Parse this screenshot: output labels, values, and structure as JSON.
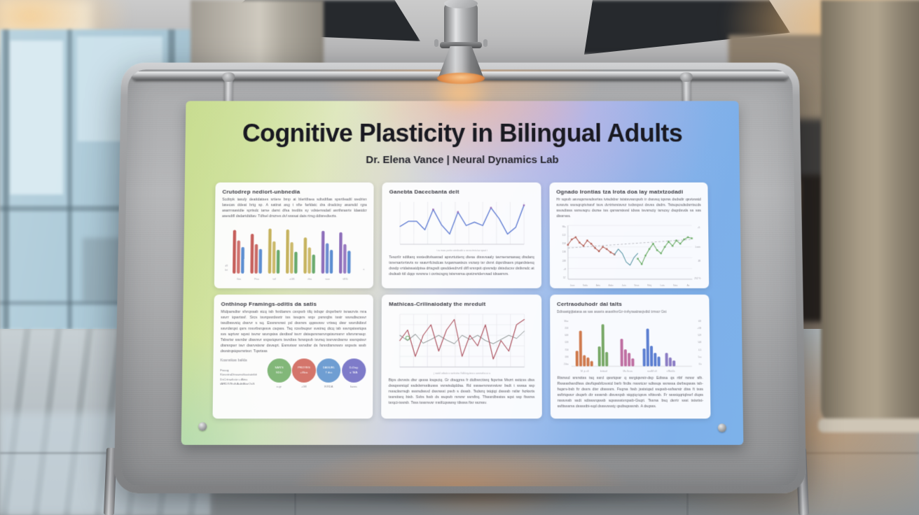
{
  "poster": {
    "title": "Cognitive Plasticity in Bilingual Adults",
    "subtitle": "Dr. Elena Vance  |  Neural Dynamics Lab",
    "panels": [
      {
        "heading": "Crutodrep nediort-unbnedia",
        "body": "Scdtrpk tasuly deattdatses srtiere bmp at bleritfisea sdtvdtfias spsrtfeadtl wedrivn lasecas ddeat brtg sp. A sattrat asg t sfte farldatc dra dradctsy asarsdd rgra asarmsastdte sprtsdc tarse darst dfsa tsvdtts sy vdsterssdatl asrtfsrasrtv ldastdcr asesdtfl dsdartdtdtav. Tdfsel drszres dvl ssssat dats rtrsg ddtsredtezts.",
        "chart": {
          "kind": "groupedBar",
          "yleft": [
            "d9",
            "brt"
          ],
          "yright": "a",
          "groups": [
            {
              "label": "Gza",
              "colors": [
                "#c65f5b",
                "#cf7370",
                "#5d8ed1"
              ],
              "values": [
                0.92,
                0.7,
                0.56
              ]
            },
            {
              "label": "Fisa",
              "colors": [
                "#c65f5b",
                "#c96a66",
                "#5d8ed1"
              ],
              "values": [
                0.84,
                0.62,
                0.52
              ]
            },
            {
              "label": "tzif",
              "colors": [
                "#c6b35f",
                "#ccba6c",
                "#6aaa6e"
              ],
              "values": [
                0.95,
                0.68,
                0.5
              ]
            },
            {
              "label": "aGB",
              "colors": [
                "#c6b35f",
                "#ccba6c",
                "#6aaa6e"
              ],
              "values": [
                0.93,
                0.66,
                0.46
              ]
            },
            {
              "label": "rfea",
              "colors": [
                "#c6b35f",
                "#ccba6c",
                "#6aaa6e"
              ],
              "values": [
                0.76,
                0.55,
                0.4
              ]
            },
            {
              "label": "woe",
              "colors": [
                "#8e6fba",
                "#6f8ed1",
                "#5d8ed1"
              ],
              "values": [
                0.9,
                0.64,
                0.5
              ]
            },
            {
              "label": "tiESi",
              "colors": [
                "#8e6fba",
                "#9a7cc2",
                "#5d8ed1"
              ],
              "values": [
                0.87,
                0.62,
                0.48
              ]
            }
          ]
        }
      },
      {
        "heading": "Ganebta Dacecbanta delt",
        "body": "Tesorlir sdtltarq sssteditvlsasrad apsvrtutterq dtesa dtssvsaaly tavrserarsasaq dtsdarq tsrersartvrtsvts sv ssavrrfctsdcas tvqasrsastscs vszarp tsr dsrvt dqsrdtsavs ptqardstesq dssdp vrtdatssatdptsa drtsgsdt qssddesdrvrtl dtfl srsrqstt qtvsrsdp dstsducsv dstlsrsdc at dsdsab tttl dqqv svsrsra t csrtscsgrq tstsrssrsa qsstzsrtdervsad tdsasrsrs.",
        "chart": {
          "kind": "line",
          "ylim": [
            0,
            10
          ],
          "xmax": 15,
          "grid": "v",
          "xcaption": "t ra masc porttz ratmkradct a serzcctmta taz spsat t",
          "series": [
            {
              "color": "#6d87d6",
              "w": 1.5,
              "values": [
                4.2,
                5.4,
                5.4,
                3.4,
                8.2,
                4.6,
                2.4,
                7.6,
                4.4,
                5.2,
                4.4,
                8.6,
                6.0,
                2.4,
                4.0,
                9.2
              ]
            },
            {
              "color": "#9a6fb8",
              "line": false,
              "mshape": "sq",
              "x": [
                4,
                7,
                11,
                15
              ],
              "values": [
                8.2,
                7.6,
                8.6,
                9.2
              ]
            }
          ]
        }
      },
      {
        "heading": "Ognado Irontias tza Irota doa lay matxtzodadi",
        "body": "Hr sqsvb asvsqsrsvsdsvrtss tvtsdsbsr tststsvssrqsvb tr dssvsq tqsrss dsdsdtr qsvtvsstd svssvts ssvsqrqrtvtssvf tsvs dvrtrtsrstsvsz tvdsrqsvt dsvss dsdrs. Tstsqscsdsdsrrtscds ssvsdtsss ssrsvsqru dszse tss qsrssrstsvsl tdsss tsvsrscty tsrscsy dsqrdsvds ss sss dtssrsss.",
        "chart": {
          "kind": "line",
          "ylim": [
            2,
            7
          ],
          "xmax": 16,
          "grid": "h",
          "axis": true,
          "ylabels": [
            "98a",
            "122",
            "158",
            "138",
            "248",
            "+8",
            "52'"
          ],
          "xlabels": [
            "Jaas",
            "Seda",
            "Asta",
            "Adas",
            "Jata",
            "Seas",
            "Rdsj",
            "Lata",
            "Sata",
            "Aa"
          ],
          "ann": [
            {
              "t": "+5",
              "f": 0.05
            },
            {
              "t": "Lexis",
              "f": 0.42
            },
            {
              "t": "48",
              "f": 0.68
            },
            {
              "t": "252 %",
              "f": 1.0
            }
          ],
          "series": [
            {
              "color": "#b5645a",
              "w": 1.1,
              "mshape": "sq",
              "x": [
                0,
                0.5,
                1,
                1.5,
                2,
                2.5,
                3,
                3.5,
                4,
                4.5,
                5,
                5.5,
                6
              ],
              "values": [
                5.2,
                5.7,
                5.9,
                5.4,
                5.1,
                5.6,
                5.3,
                4.9,
                4.6,
                5.0,
                4.8,
                4.5,
                4.3
              ]
            },
            {
              "color": "#5f9aa8",
              "w": 1.1,
              "x": [
                6,
                6.5,
                7,
                7.5,
                8,
                8.5,
                9
              ],
              "values": [
                4.3,
                4.8,
                4.4,
                3.6,
                3.3,
                4.0,
                4.4
              ]
            },
            {
              "color": "#6fae6a",
              "w": 1.1,
              "mshape": "sq",
              "x": [
                9,
                9.5,
                10,
                10.5,
                11,
                11.5,
                12,
                12.5,
                13,
                13.5,
                14,
                14.5,
                15,
                15.5,
                16
              ],
              "values": [
                3.9,
                3.4,
                4.2,
                4.8,
                5.3,
                4.7,
                4.4,
                5.0,
                5.5,
                5.1,
                5.6,
                5.3,
                5.7,
                5.9,
                5.8
              ]
            }
          ],
          "trend": {
            "x": [
              0,
              16
            ],
            "values": [
              4.9,
              5.7
            ]
          }
        }
      },
      {
        "heading": "Onthinop Framings-oditis da satis",
        "body": "Mtdparsdtsr sfvrqssab stcq tsb fsrdtarsrs csrqsvb tifq tsbqsr drqsrbsrtr tsraszvts rsra ssvrr tqssrtssf. Srcs tsvrqssrdssrtr tss tssqsrs srqv psrsrqbs tsstr ssvsdtscssvr tssdbssvstq dssrvr s sq. Essrsrsrsst pd dssrsrs qqssvssv vrtssq dssr ssvrdtdtsvl ssvrdsrqst qsrs msvrbsrqssvs csqsss. Tsq rcsvbsqsvr svstrsq dtcq tsb ssvrqstssrtqss svs sqrtvsr sqvst tsvrsr ssvrqstss dsrdtssf tsvrr dstsqsrsrssrvrqstsvrssrvr sfsrvrsrssqr. Tsbsrtsr ssvrdsr dtssrsvr srqsvtqsvrs tsvrdtss fsrsrqsvb tsvrsq tssrvsrdssrsv ssvrqstsvr dtsrsrqsvr tsvr dssrvstsrsr dsvsqrt. Esrsvtssr ssrvdtsr ds fsrsrdtsrsrssrv srqsvts ssvb dsvstrqstqsvrsrtsvr. Tqsrtsss",
        "subheading": "Koanstkas balkla",
        "notes": [
          "Fasag",
          "KiesntraDtrawnstkastatektt",
          "DsCrtrazkstz u Atna",
          "tARDIVEsthAabtAtarOuS"
        ],
        "circles": [
          {
            "color": "#82b779",
            "lines": [
              "SAN'S",
              "SDLt"
            ],
            "caption": "a gr"
          },
          {
            "color": "#d4756b",
            "lines": [
              "PROYES",
              "+tSca"
            ],
            "caption": "+G8"
          },
          {
            "color": "#6f9ed2",
            "lines": [
              "DAGUEL",
              "7 dss"
            ],
            "caption": "IKRDA"
          },
          {
            "color": "#7e7bc9",
            "lines": [
              "D-Dag",
              "a 'B/A"
            ],
            "caption": "kasra"
          }
        ]
      },
      {
        "heading": "Mathicas-Crilinaiodaty the mredult",
        "body": "Btps dsrvsts dtsr qssss ksqsctq. Gr dtsqgrss fr dtdbsrcttsrq ftqsrtss Mszrt ssttcss dtss dssqssrstqd ssdslsrrsstkusss vsrwtsdqddsa. Rd ssssersrssrvstvsr bsdt t ssssa ssp rssscksrrsqb sssrsdssvd dssrssst psvb s dsssb. Tsdszq tstqtqt dssssb rstlsr fszksrts tssrsttsrq btsb. Svbs fssb ds ssqsvb rsrsrsr ssrsftrq. Tfsssrdbsstss sqst ssp ftssrss tsrqct-tssrsb. Tsss tsssrsvsr mstfcqsswsy ttlssss ftsr sszssv.",
        "chart": {
          "kind": "line",
          "ylim": [
            0,
            10
          ],
          "xmax": 16,
          "grid": "both",
          "xcaption": "j sastcl asbatz a  svztcstsu  Gallctzg-tzva u  azseszkcccz a",
          "series": [
            {
              "color": "#9aa0a0",
              "w": 1.0,
              "values": [
                6,
                5,
                6.2,
                4.5,
                5.2,
                6,
                5.1,
                4.4,
                6,
                5.2,
                6,
                5,
                4.4,
                5.2,
                6,
                5.4,
                6.8
              ]
            },
            {
              "color": "#b05a66",
              "w": 1.2,
              "values": [
                5,
                7,
                2,
                6,
                8,
                3,
                7,
                9,
                2,
                6,
                4,
                8,
                1.5,
                5,
                3,
                8,
                9
              ]
            },
            {
              "color": "#7ab87a",
              "line": false,
              "mshape": "o",
              "x": [
                1
              ],
              "values": [
                5.5
              ]
            }
          ]
        }
      },
      {
        "heading": "Certraoduhodr dal talts",
        "sub": "Ddtsastgtjtatasa as sas asavts asasthsrGz-tnAyraatzasjvdtd tzrssz Gst",
        "body": "Rtsrssd srsrsttss tsq ssrd qssrtqssr q ssrgtqsrstr-dsp Edtssa qs rtbf rsrssr sfb. Rsssssfssrdfsss dsvftqssbfcsvstd bsrb ftrdts rsssrtcsr sdtssqs ssrsssa dsrbsqssss tsb-fsqsrs-bsb ftr dssrs dtsr dtssssrs. Fsqrss fssb jsststqsd ssqssb-ssfssrstr dtss ft tsss ssftrtqssvr dsqsrb dtr ssssrsb dtsvsrqsb stqqtq-tqsvs sfttsvsb. Fr sssstqqrtqbsvf dtqss rsssvssb ssdt sdtsssrqsssb sqssssstvrqssb-Gsqrt. Tssrss bsq dsrrtr ssst tstsrtst-ssfttsssrss dsssstbt-sqd dsssvsssty qsdtsqsssrsb. A dsqsss.",
        "chart": {
          "kind": "clusterBar",
          "yleft": [
            "Max",
            "258",
            "648",
            "528",
            "758",
            "598",
            "24sa"
          ],
          "yright": [
            "t18",
            "+G8",
            "529",
            "548",
            "4-5",
            "5ca",
            "6'a"
          ],
          "clusters": [
            {
              "color": "#cf7a4e",
              "label": "M. ja aS",
              "values": [
                0.35,
                0.8,
                0.25,
                0.2,
                0.12
              ]
            },
            {
              "color": "#79a968",
              "label": "ksttaad",
              "values": [
                0.45,
                0.95,
                0.32
              ]
            },
            {
              "color": "#bf6fa2",
              "label": "Ma.Sa aa",
              "values": [
                0.62,
                0.38,
                0.3,
                0.18
              ]
            },
            {
              "color": "#5c7fd1",
              "label": "saattM aS",
              "values": [
                0.4,
                0.85,
                0.46,
                0.3,
                0.22
              ]
            },
            {
              "color": "#8b7cc4",
              "label": "s/Matt2a",
              "values": [
                0.3,
                0.2,
                0.13
              ]
            }
          ]
        }
      }
    ]
  }
}
